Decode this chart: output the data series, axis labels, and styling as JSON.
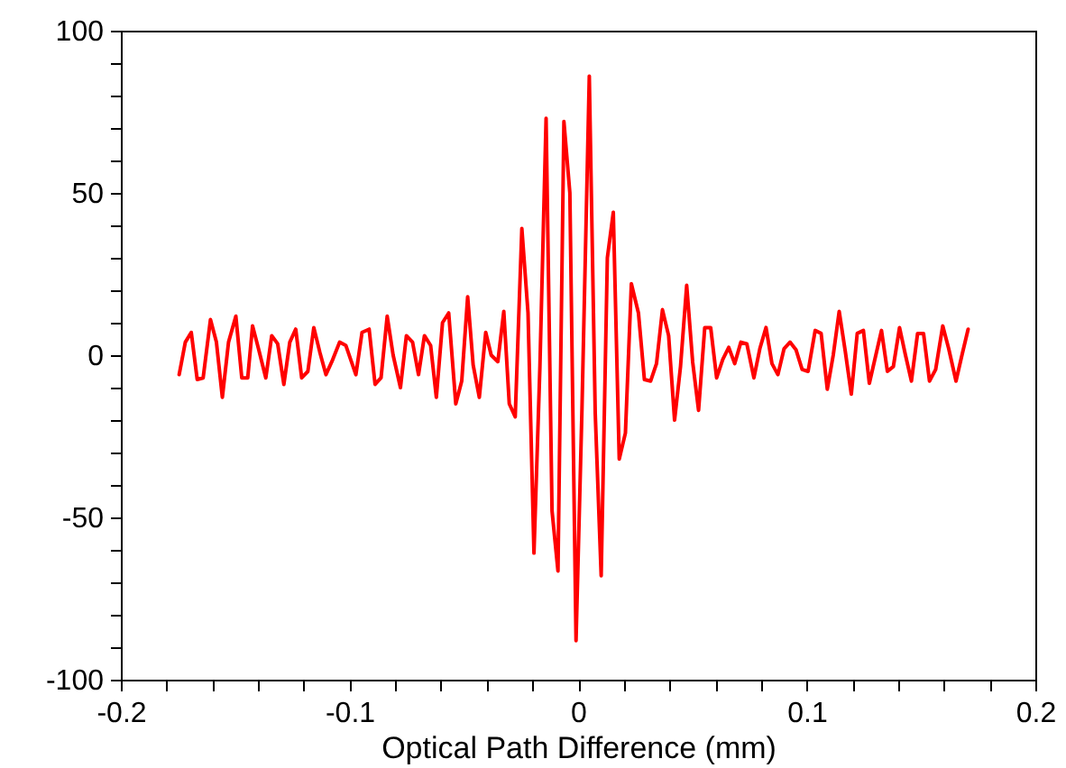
{
  "chart_data": {
    "type": "line",
    "xlabel": "Optical Path Difference (mm)",
    "x": [
      -0.1745,
      -0.1718,
      -0.1692,
      -0.1666,
      -0.164,
      -0.1608,
      -0.1582,
      -0.1556,
      -0.1529,
      -0.1497,
      -0.1471,
      -0.1445,
      -0.1424,
      -0.1398,
      -0.1366,
      -0.134,
      -0.1314,
      -0.1287,
      -0.1261,
      -0.1235,
      -0.1209,
      -0.1182,
      -0.1156,
      -0.113,
      -0.1103,
      -0.1077,
      -0.1043,
      -0.1016,
      -0.0972,
      -0.0945,
      -0.0914,
      -0.0888,
      -0.0862,
      -0.0835,
      -0.0809,
      -0.0777,
      -0.0751,
      -0.0724,
      -0.0698,
      -0.0672,
      -0.0645,
      -0.062,
      -0.0593,
      -0.0566,
      -0.0535,
      -0.0509,
      -0.0483,
      -0.0459,
      -0.0432,
      -0.0404,
      -0.038,
      -0.0351,
      -0.0325,
      -0.0301,
      -0.0275,
      -0.0246,
      -0.0219,
      -0.0193,
      -0.0167,
      -0.014,
      -0.0114,
      -0.0088,
      -0.0062,
      -0.0036,
      -0.0009,
      0.0017,
      0.0049,
      0.0075,
      0.0101,
      0.0128,
      0.0154,
      0.018,
      0.0207,
      0.0233,
      0.0264,
      0.029,
      0.0317,
      0.0343,
      0.0369,
      0.0396,
      0.0422,
      0.0448,
      0.0475,
      0.0501,
      0.0527,
      0.0554,
      0.058,
      0.0606,
      0.0633,
      0.0659,
      0.0685,
      0.0712,
      0.0738,
      0.0769,
      0.0795,
      0.0822,
      0.0848,
      0.0874,
      0.0901,
      0.0927,
      0.0953,
      0.098,
      0.1006,
      0.1037,
      0.1063,
      0.109,
      0.1116,
      0.1142,
      0.1169,
      0.1195,
      0.1221,
      0.1248,
      0.1274,
      0.13,
      0.1327,
      0.1353,
      0.1379,
      0.1406,
      0.1432,
      0.1458,
      0.1485,
      0.1511,
      0.1537,
      0.1564,
      0.1595,
      0.1621,
      0.1653,
      0.1679,
      0.1706
    ],
    "series": [
      {
        "color": "#ff0000",
        "values": [
          -6,
          4,
          7,
          -7.5,
          -7,
          11,
          4,
          -13,
          4,
          12,
          -7,
          -7,
          9,
          2,
          -7,
          6,
          3.5,
          -9,
          4,
          8,
          -7,
          -5,
          8.5,
          1,
          -6,
          -2,
          4,
          3,
          -6,
          7,
          8,
          -9,
          -7,
          12,
          0,
          -10,
          6,
          4,
          -6,
          6,
          3,
          -13,
          10,
          13,
          -15,
          -8,
          18,
          -3,
          -13,
          7,
          0,
          -2,
          13.5,
          -15,
          -19,
          39,
          13,
          -61,
          -3.5,
          73,
          -48,
          -66.5,
          72,
          50,
          -88,
          -16.5,
          86,
          -18,
          -68,
          30,
          44,
          -32,
          -24,
          22,
          13,
          -7.5,
          -8,
          -2.6,
          14,
          6,
          -20,
          -3.5,
          21.5,
          -2,
          -17,
          8.5,
          8.5,
          -7,
          -1.3,
          2.4,
          -2.6,
          4,
          3.5,
          -7,
          2,
          8.5,
          -2.6,
          -6,
          2,
          4,
          1.7,
          -4.4,
          -5,
          7.6,
          6.7,
          -10.5,
          0,
          13.5,
          1,
          -12,
          6.7,
          7.6,
          -8.7,
          -0.7,
          7.6,
          -5,
          -3.5,
          8.5,
          0,
          -8,
          6.7,
          6.7,
          -8,
          -4.4,
          9,
          2,
          -8,
          0,
          8
        ]
      }
    ],
    "xlim": [
      -0.2,
      0.2
    ],
    "xticks": [
      -0.2,
      {
        "value": -0.18,
        "label": null
      },
      {
        "value": -0.16,
        "label": null
      },
      {
        "value": -0.14,
        "label": null
      },
      {
        "value": -0.12,
        "label": null
      },
      -0.1,
      {
        "value": -0.08,
        "label": null
      },
      {
        "value": -0.06,
        "label": null
      },
      {
        "value": -0.04,
        "label": null
      },
      {
        "value": -0.02,
        "label": null
      },
      0,
      {
        "value": 0.02,
        "label": null
      },
      {
        "value": 0.04,
        "label": null
      },
      {
        "value": 0.06,
        "label": null
      },
      {
        "value": 0.08,
        "label": null
      },
      0.1,
      {
        "value": 0.12,
        "label": null
      },
      {
        "value": 0.14,
        "label": null
      },
      {
        "value": 0.16,
        "label": null
      },
      {
        "value": 0.18,
        "label": null
      },
      0.2
    ],
    "ylim": [
      -100,
      100
    ],
    "yticks": [
      -100,
      {
        "value": -90,
        "label": null
      },
      {
        "value": -80,
        "label": null
      },
      {
        "value": -70,
        "label": null
      },
      {
        "value": -60,
        "label": null
      },
      -50,
      {
        "value": -40,
        "label": null
      },
      {
        "value": -30,
        "label": null
      },
      {
        "value": -20,
        "label": null
      },
      {
        "value": -10,
        "label": null
      },
      0,
      {
        "value": 10,
        "label": null
      },
      {
        "value": 20,
        "label": null
      },
      {
        "value": 30,
        "label": null
      },
      {
        "value": 40,
        "label": null
      },
      50,
      {
        "value": 60,
        "label": null
      },
      {
        "value": 70,
        "label": null
      },
      {
        "value": 80,
        "label": null
      },
      {
        "value": 90,
        "label": null
      },
      100
    ],
    "grid": false,
    "marker": "none",
    "line_style": "solid"
  }
}
